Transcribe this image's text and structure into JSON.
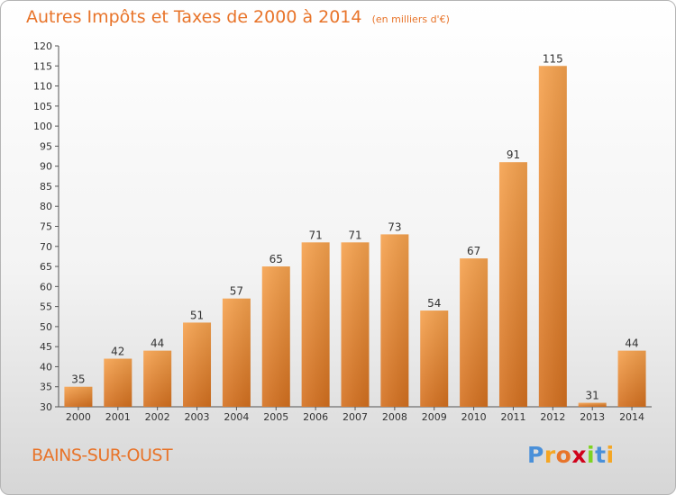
{
  "header": {
    "title": "Autres Impôts et Taxes de 2000 à 2014",
    "unit": "(en milliers d'€)"
  },
  "footer": {
    "commune": "BAINS-SUR-OUST",
    "logo_letters": [
      "P",
      "r",
      "o",
      "x",
      "i",
      "t",
      "i"
    ],
    "logo_colors": [
      "#4a90d9",
      "#f5a623",
      "#e8742a",
      "#d0021b",
      "#7ed321",
      "#4a90d9",
      "#f5a623"
    ]
  },
  "chart_data": {
    "type": "bar",
    "categories": [
      "2000",
      "2001",
      "2002",
      "2003",
      "2004",
      "2005",
      "2006",
      "2007",
      "2008",
      "2009",
      "2010",
      "2011",
      "2012",
      "2013",
      "2014"
    ],
    "values": [
      35,
      42,
      44,
      51,
      57,
      65,
      71,
      71,
      73,
      54,
      67,
      91,
      115,
      31,
      44
    ],
    "ylim": [
      30,
      120
    ],
    "yticks": [
      30,
      35,
      40,
      45,
      50,
      55,
      60,
      65,
      70,
      75,
      80,
      85,
      90,
      95,
      100,
      105,
      110,
      115,
      120
    ],
    "grid": false,
    "bar_color_top": "#f6a24e",
    "bar_color_bottom": "#d4701f"
  }
}
